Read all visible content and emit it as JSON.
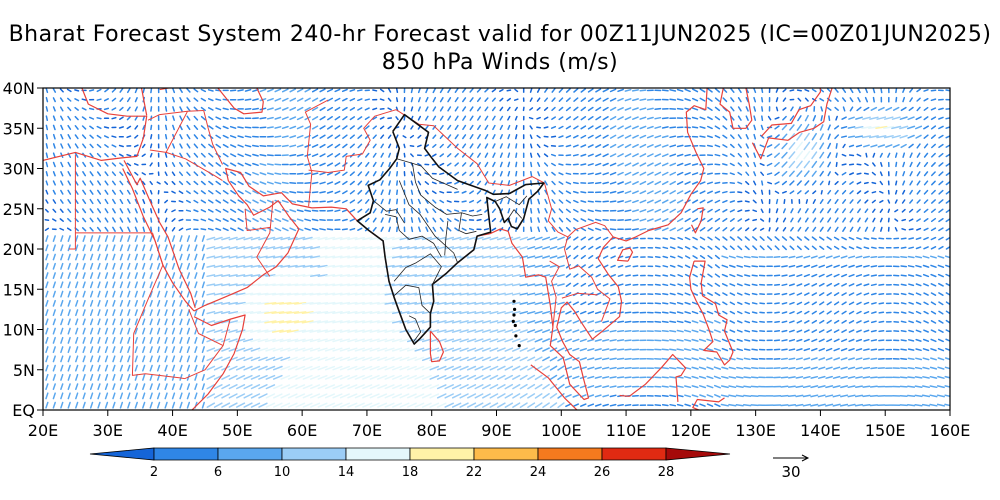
{
  "title": "Bharat Forecast System 240-hr Forecast valid for 00Z11JUN2025 (IC=00Z01JUN2025)",
  "subtitle": "850 hPa Winds (m/s)",
  "lat_labels": [
    "EQ",
    "5N",
    "10N",
    "15N",
    "20N",
    "25N",
    "30N",
    "35N",
    "40N"
  ],
  "lon_labels": [
    "20E",
    "30E",
    "40E",
    "50E",
    "60E",
    "70E",
    "80E",
    "90E",
    "100E",
    "110E",
    "120E",
    "130E",
    "140E",
    "150E",
    "160E"
  ],
  "colorbar": {
    "labels": [
      "2",
      "6",
      "10",
      "14",
      "18",
      "22",
      "24",
      "26",
      "28"
    ],
    "colors": [
      "#1565d8",
      "#2f86e6",
      "#5aa7ee",
      "#9bcdf6",
      "#e4f7fb",
      "#fff2a8",
      "#fdbb4a",
      "#f57a1e",
      "#e02a12",
      "#a50a0a"
    ]
  },
  "reference_vector": "30",
  "colors": {
    "coast": "#e8413a",
    "india_border": "#111111"
  }
}
